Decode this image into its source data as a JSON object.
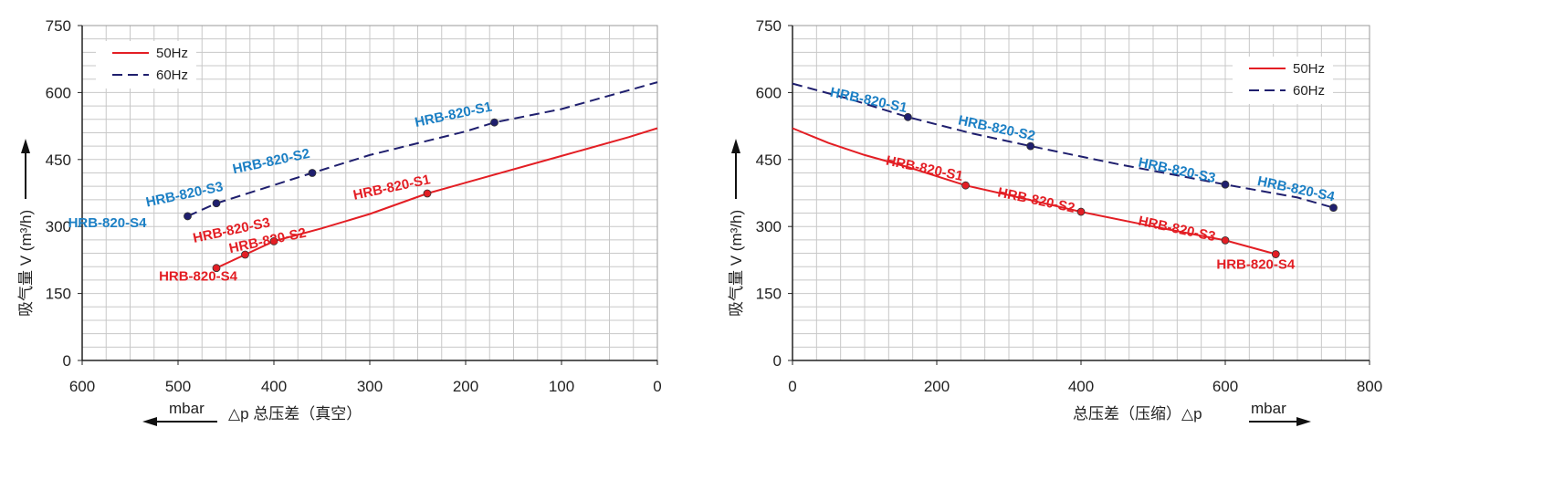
{
  "colors": {
    "hz50": "#e31e24",
    "hz60": "#1f1f6e",
    "label50": "#e31e24",
    "label60": "#1b7fc4",
    "grid": "#c8c8c8",
    "axis": "#222222"
  },
  "legend": {
    "hz50": "50Hz",
    "hz60": "60Hz"
  },
  "chart_data": [
    {
      "type": "line",
      "xlim": [
        600,
        0
      ],
      "ylim": [
        0,
        750
      ],
      "xticks": [
        600,
        500,
        400,
        300,
        200,
        100,
        0
      ],
      "yticks": [
        0,
        150,
        300,
        450,
        600,
        750
      ],
      "ylabel_var": "吸气量 V (m³/h)",
      "xlabel": "△p  总压差（真空）",
      "unit": "mbar",
      "grid": true,
      "legend_position": "top-left",
      "series": [
        {
          "name": "50Hz",
          "style": "solid",
          "x": [
            460,
            430,
            400,
            350,
            300,
            240,
            200,
            100,
            30,
            0
          ],
          "y": [
            207,
            237,
            267,
            296,
            328,
            374,
            398,
            458,
            500,
            520
          ],
          "points": [
            {
              "x": 240,
              "y": 374,
              "label": "HRB-820-S1"
            },
            {
              "x": 400,
              "y": 267,
              "label": "HRB-820-S2"
            },
            {
              "x": 430,
              "y": 237,
              "label": "HRB-820-S3"
            },
            {
              "x": 460,
              "y": 207,
              "label": "HRB-820-S4"
            }
          ]
        },
        {
          "name": "60Hz",
          "style": "dashed",
          "x": [
            490,
            460,
            360,
            300,
            200,
            170,
            100,
            0
          ],
          "y": [
            323,
            352,
            420,
            460,
            513,
            533,
            563,
            623
          ],
          "points": [
            {
              "x": 170,
              "y": 533,
              "label": "HRB-820-S1"
            },
            {
              "x": 360,
              "y": 420,
              "label": "HRB-820-S2"
            },
            {
              "x": 460,
              "y": 352,
              "label": "HRB-820-S3"
            },
            {
              "x": 490,
              "y": 323,
              "label": "HRB-820-S4"
            }
          ]
        }
      ]
    },
    {
      "type": "line",
      "xlim": [
        0,
        800
      ],
      "ylim": [
        0,
        750
      ],
      "xticks": [
        0,
        200,
        400,
        600,
        800
      ],
      "yticks": [
        0,
        150,
        300,
        450,
        600,
        750
      ],
      "ylabel_var": "吸气量 V (m³/h)",
      "xlabel": "总压差（压缩）△p",
      "unit": "mbar",
      "grid": true,
      "legend_position": "top-right",
      "series": [
        {
          "name": "50Hz",
          "style": "solid",
          "x": [
            0,
            50,
            100,
            160,
            240,
            300,
            400,
            500,
            600,
            670
          ],
          "y": [
            520,
            487,
            460,
            433,
            392,
            370,
            333,
            300,
            269,
            238
          ],
          "points": [
            {
              "x": 240,
              "y": 392,
              "label": "HRB-820-S1"
            },
            {
              "x": 400,
              "y": 333,
              "label": "HRB-820-S2"
            },
            {
              "x": 600,
              "y": 269,
              "label": "HRB-820-S3"
            },
            {
              "x": 670,
              "y": 238,
              "label": "HRB-820-S4"
            }
          ]
        },
        {
          "name": "60Hz",
          "style": "dashed",
          "x": [
            0,
            80,
            160,
            250,
            330,
            450,
            600,
            700,
            750
          ],
          "y": [
            620,
            585,
            545,
            508,
            480,
            440,
            394,
            365,
            342
          ],
          "points": [
            {
              "x": 160,
              "y": 545,
              "label": "HRB-820-S1"
            },
            {
              "x": 330,
              "y": 480,
              "label": "HRB-820-S2"
            },
            {
              "x": 600,
              "y": 394,
              "label": "HRB-820-S3"
            },
            {
              "x": 750,
              "y": 342,
              "label": "HRB-820-S4"
            }
          ]
        }
      ]
    }
  ]
}
